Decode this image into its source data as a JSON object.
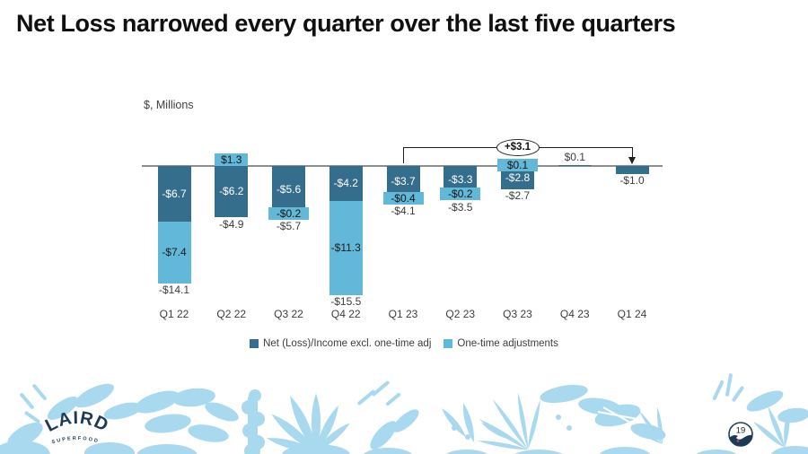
{
  "slide": {
    "title": "Net Loss narrowed every quarter over the last five quarters",
    "page_number": "19",
    "logo": {
      "brand": "LAIRD",
      "sub": "SUPERFOOD."
    }
  },
  "chart_data": {
    "type": "bar",
    "stacked": true,
    "title": "",
    "unit_label": "$, Millions",
    "xlabel": "",
    "ylabel": "$, Millions",
    "ylim": [
      -16.5,
      2
    ],
    "grid": false,
    "legend_position": "bottom",
    "categories": [
      "Q1 22",
      "Q2 22",
      "Q3 22",
      "Q4 22",
      "Q1 23",
      "Q2 23",
      "Q3 23",
      "Q4 23",
      "Q1 24"
    ],
    "series": [
      {
        "name": "Net (Loss)/Income excl. one-time adj",
        "color": "#346e8c",
        "values": [
          -6.7,
          -6.2,
          -5.6,
          -4.2,
          -3.7,
          -3.3,
          -2.8,
          0.1,
          -1.0
        ],
        "labels": [
          "-$6.7",
          "-$6.2",
          "-$5.6",
          "-$4.2",
          "-$3.7",
          "-$3.3",
          "-$2.8",
          "",
          ""
        ]
      },
      {
        "name": "One-time adjustments",
        "color": "#62b8d8",
        "values": [
          -7.4,
          1.3,
          -0.2,
          -11.3,
          -0.4,
          -0.2,
          0.1,
          0,
          0
        ],
        "labels": [
          "-$7.4",
          "$1.3",
          "-$0.2",
          "-$11.3",
          "-$0.4",
          "-$0.2",
          "$0.1",
          "",
          ""
        ]
      }
    ],
    "totals": [
      -14.1,
      -4.9,
      -5.7,
      -15.5,
      -4.1,
      -3.5,
      -2.7,
      0.1,
      -1.0
    ],
    "total_labels": [
      "-$14.1",
      "-$4.9",
      "-$5.7",
      "-$15.5",
      "-$4.1",
      "-$3.5",
      "-$2.7",
      "$0.1",
      "-$1.0"
    ],
    "annotation": {
      "label": "+$3.1",
      "from_category": "Q1 23",
      "to_category": "Q1 24"
    }
  }
}
